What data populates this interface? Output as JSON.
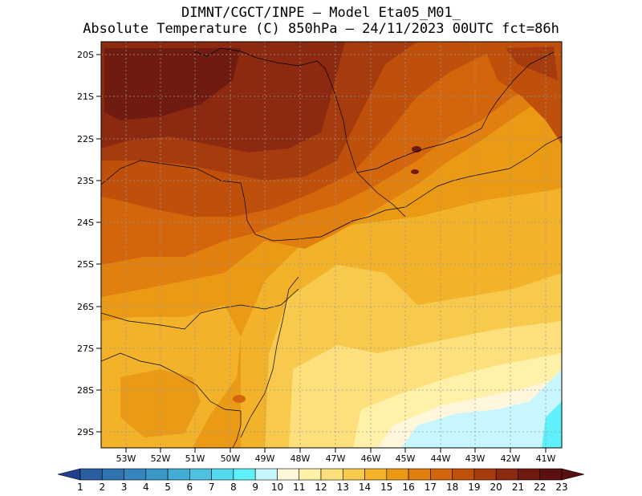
{
  "title": {
    "line1": "DIMNT/CGCT/INPE —  Model Eta05_M01_",
    "line2": "Absolute Temperature (C) 850hPa —  24/11/2023 00UTC fct=86h"
  },
  "map": {
    "lat_labels": [
      "20S",
      "21S",
      "22S",
      "23S",
      "24S",
      "25S",
      "26S",
      "27S",
      "28S",
      "29S"
    ],
    "lon_labels": [
      "53W",
      "52W",
      "51W",
      "50W",
      "49W",
      "48W",
      "47W",
      "46W",
      "45W",
      "44W",
      "43W",
      "42W",
      "41W"
    ]
  },
  "colorbar": {
    "labels": [
      "1",
      "2",
      "3",
      "4",
      "5",
      "6",
      "7",
      "8",
      "9",
      "10",
      "11",
      "12",
      "13",
      "14",
      "15",
      "16",
      "17",
      "18",
      "19",
      "20",
      "21",
      "22",
      "23"
    ],
    "colors": [
      "#1f3f8f",
      "#2a5ea0",
      "#2f73b0",
      "#3485bd",
      "#3a98c8",
      "#41acd4",
      "#4cc2e0",
      "#52d8ef",
      "#5ef0fb",
      "#c8f6ff",
      "#fff6dc",
      "#fff1a8",
      "#fde07b",
      "#f7c94c",
      "#f2b22a",
      "#eb9a16",
      "#e2800f",
      "#d3660c",
      "#bf500c",
      "#a63c0e",
      "#8b2a10",
      "#701b10",
      "#5a0f12"
    ]
  }
}
